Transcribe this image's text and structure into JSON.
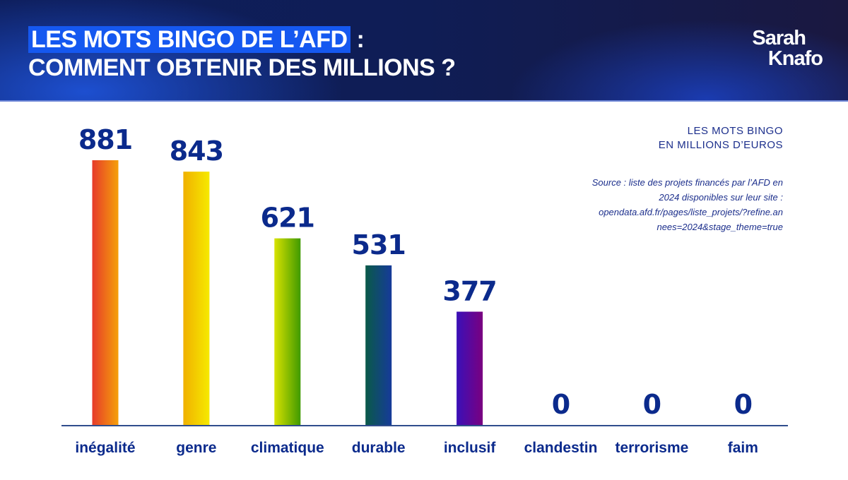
{
  "header": {
    "title_highlight": "LES MOTS BINGO DE L’AFD",
    "title_rest": " :",
    "title_line2": "COMMENT OBTENIR DES MILLIONS ?",
    "logo_line1": "Sarah",
    "logo_line2": "Knafo"
  },
  "chart_data": {
    "type": "bar",
    "title": "LES MOTS BINGO EN MILLIONS D’EUROS",
    "title_line1": "LES MOTS BINGO",
    "title_line2": "EN MILLIONS D’EUROS",
    "source_lines": [
      "Source : liste des projets financés par l’AFD en",
      "2024 disponibles sur leur site :",
      "opendata.afd.fr/pages/liste_projets/?refine.an",
      "nees=2024&stage_theme=true"
    ],
    "categories": [
      "inégalité",
      "genre",
      "climatique",
      "durable",
      "inclusif",
      "clandestin",
      "terrorisme",
      "faim"
    ],
    "values": [
      881,
      843,
      621,
      531,
      377,
      0,
      0,
      0
    ],
    "labels": [
      "881",
      "843",
      "621",
      "531",
      "377",
      "0",
      "0",
      "0"
    ],
    "ylim": [
      0,
      881
    ],
    "xlabel": "",
    "ylabel": "",
    "grid": false,
    "gradients": [
      [
        "#e63a2a",
        "#f5a00a"
      ],
      [
        "#f0b000",
        "#f6ea00"
      ],
      [
        "#d8e200",
        "#3f9a00"
      ],
      [
        "#0a5a48",
        "#163a9a"
      ],
      [
        "#3a10b8",
        "#7a0080"
      ],
      [
        "#000",
        "#000"
      ],
      [
        "#000",
        "#000"
      ],
      [
        "#000",
        "#000"
      ]
    ],
    "label_color": "#0b2a8c",
    "axis_color": "#2f4d8c"
  }
}
